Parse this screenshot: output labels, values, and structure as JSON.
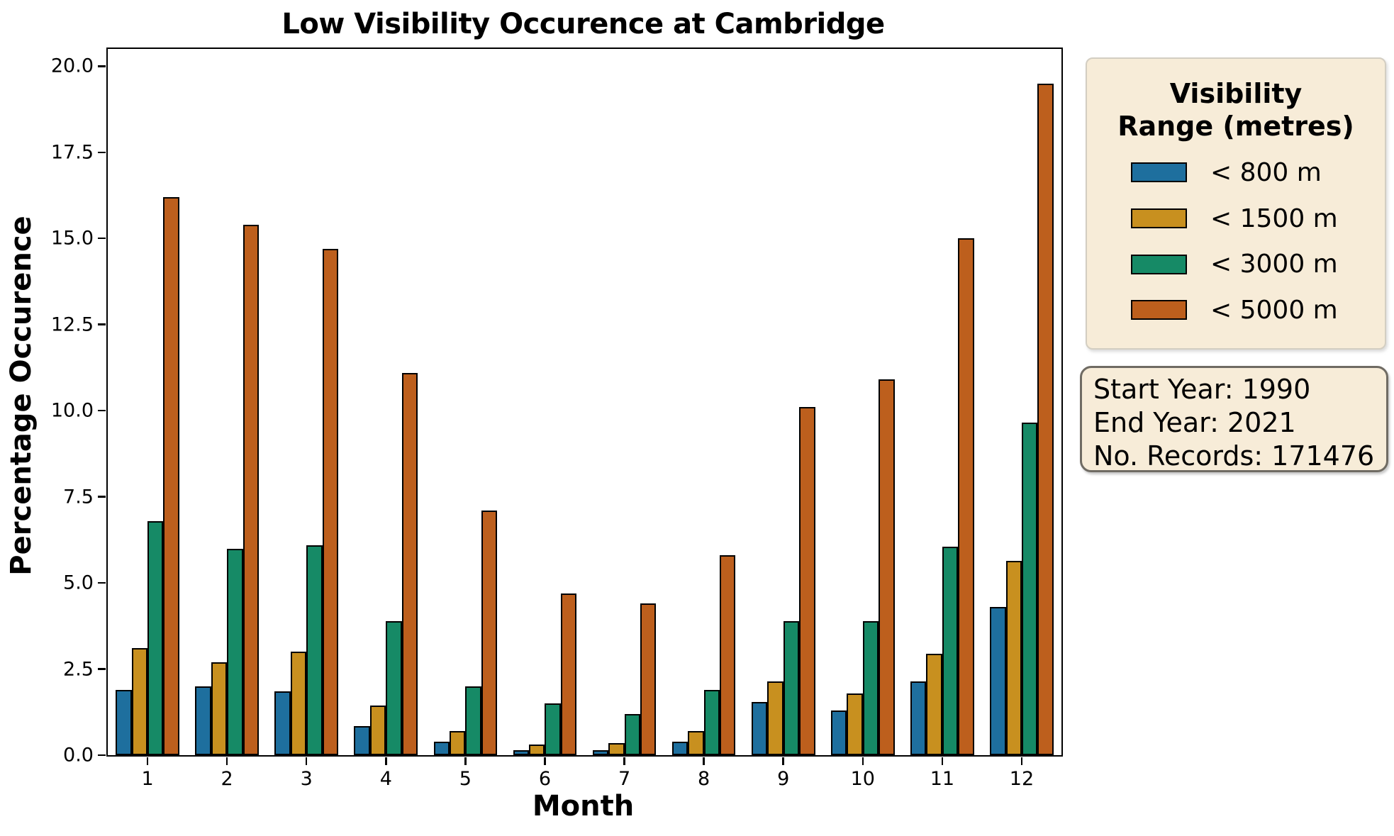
{
  "title": "Low Visibility Occurence at Cambridge",
  "axes": {
    "x_label": "Month",
    "y_label": "Percentage Occurence",
    "y_ticks": [
      "0.0",
      "2.5",
      "5.0",
      "7.5",
      "10.0",
      "12.5",
      "15.0",
      "17.5",
      "20.0"
    ],
    "x_ticks": [
      "1",
      "2",
      "3",
      "4",
      "5",
      "6",
      "7",
      "8",
      "9",
      "10",
      "11",
      "12"
    ]
  },
  "legend": {
    "title_line1": "Visibility",
    "title_line2": "Range (metres)",
    "items": [
      {
        "label": "< 800 m",
        "color": "#1e6f9e"
      },
      {
        "label": "< 1500 m",
        "color": "#c8901f"
      },
      {
        "label": "< 3000 m",
        "color": "#168a66"
      },
      {
        "label": "< 5000 m",
        "color": "#bd5f1d"
      }
    ]
  },
  "info_box": {
    "lines": [
      "Start Year: 1990",
      "End Year: 2021",
      "No. Records: 171476"
    ]
  },
  "colors": {
    "background": "#ffffff",
    "bar_edge": "#000000",
    "box_background": "#f7ecd8",
    "legend_border": "#d3cec2",
    "info_border": "#6f6b63"
  },
  "chart_data": {
    "type": "bar",
    "title": "Low Visibility Occurence at Cambridge",
    "xlabel": "Month",
    "ylabel": "Percentage Occurence",
    "categories": [
      "1",
      "2",
      "3",
      "4",
      "5",
      "6",
      "7",
      "8",
      "9",
      "10",
      "11",
      "12"
    ],
    "series": [
      {
        "name": "< 800 m",
        "color": "#1e6f9e",
        "values": [
          1.9,
          2.0,
          1.85,
          0.85,
          0.4,
          0.15,
          0.15,
          0.4,
          1.55,
          1.3,
          2.15,
          4.3
        ]
      },
      {
        "name": "< 1500 m",
        "color": "#c8901f",
        "values": [
          3.1,
          2.7,
          3.0,
          1.45,
          0.7,
          0.3,
          0.35,
          0.7,
          2.15,
          1.8,
          2.95,
          5.65
        ]
      },
      {
        "name": "< 3000 m",
        "color": "#168a66",
        "values": [
          6.8,
          6.0,
          6.1,
          3.9,
          2.0,
          1.5,
          1.2,
          1.9,
          3.9,
          3.9,
          6.05,
          9.65
        ]
      },
      {
        "name": "< 5000 m",
        "color": "#bd5f1d",
        "values": [
          16.2,
          15.4,
          14.7,
          11.1,
          7.1,
          4.7,
          4.4,
          5.8,
          10.1,
          10.9,
          15.0,
          19.5
        ]
      }
    ],
    "ylim": [
      0,
      20.5
    ],
    "y_tick_step": 2.5,
    "grid": false,
    "bar_group_width_fraction": 0.8,
    "legend_position": "outside-right",
    "legend_title": "Visibility Range (metres)",
    "annotations": [
      "Start Year: 1990",
      "End Year: 2021",
      "No. Records: 171476"
    ]
  }
}
